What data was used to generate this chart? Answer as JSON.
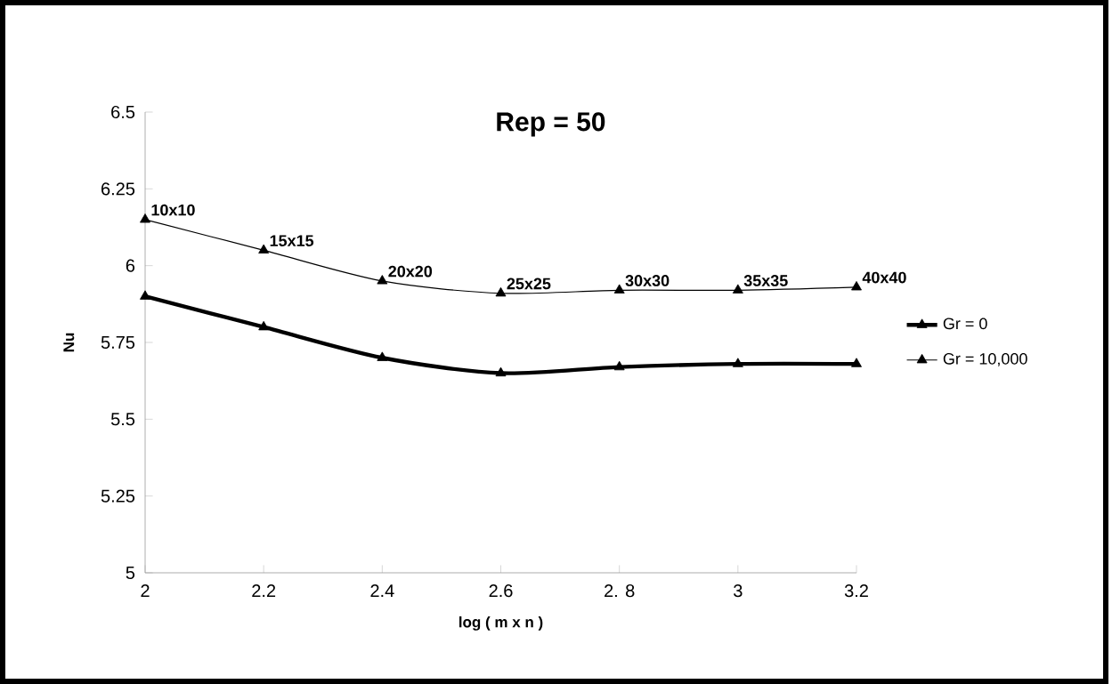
{
  "chart_data": {
    "type": "line",
    "title": "Rep = 50",
    "xlabel": "log ( m x n )",
    "ylabel": "Nu",
    "x": [
      2,
      2.2,
      2.4,
      2.6,
      2.8,
      3,
      3.2
    ],
    "series": [
      {
        "name": "Gr = 0",
        "color": "#000000",
        "values": [
          5.9,
          5.8,
          5.7,
          5.65,
          5.67,
          5.68,
          5.68
        ]
      },
      {
        "name": "Gr = 10,000",
        "color": "#000000",
        "values": [
          6.15,
          6.05,
          5.95,
          5.91,
          5.92,
          5.92,
          5.93
        ]
      }
    ],
    "xlim": [
      2,
      3.2
    ],
    "ylim": [
      5,
      6.5
    ],
    "xticks": [
      2,
      2.2,
      2.4,
      2.6,
      {
        "value": 2.8,
        "label": "2. 8"
      },
      3,
      3.2
    ],
    "yticks": [
      5,
      5.25,
      5.5,
      5.75,
      6,
      6.25,
      6.5
    ],
    "annotations": [
      {
        "text": "10x10",
        "x": 2,
        "y": 6.15
      },
      {
        "text": "15x15",
        "x": 2.2,
        "y": 6.05
      },
      {
        "text": "20x20",
        "x": 2.4,
        "y": 5.95
      },
      {
        "text": "25x25",
        "x": 2.6,
        "y": 5.91
      },
      {
        "text": "30x30",
        "x": 2.8,
        "y": 5.92
      },
      {
        "text": "35x35",
        "x": 3,
        "y": 5.92
      },
      {
        "text": "40x40",
        "x": 3.2,
        "y": 5.93
      }
    ],
    "legend": "right",
    "marker": "triangle",
    "line_style": "solid",
    "grid": false
  }
}
